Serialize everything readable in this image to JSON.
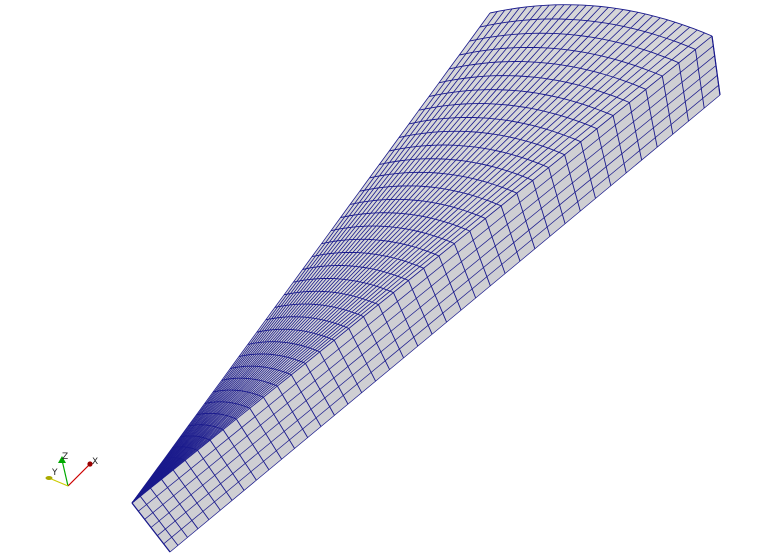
{
  "viewport": {
    "background": "#ffffff",
    "mesh": {
      "surface_color": "#d6d6d8",
      "side_color": "#cfcfd3",
      "wire_color": "#1a1a8c",
      "radial_divisions": 40,
      "angular_divisions": 30,
      "thickness_divisions": 6
    },
    "axes": {
      "x_label": "X",
      "y_label": "Y",
      "z_label": "Z",
      "x_color": "#cc0000",
      "y_color": "#cccc00",
      "z_color": "#00aa00"
    }
  }
}
